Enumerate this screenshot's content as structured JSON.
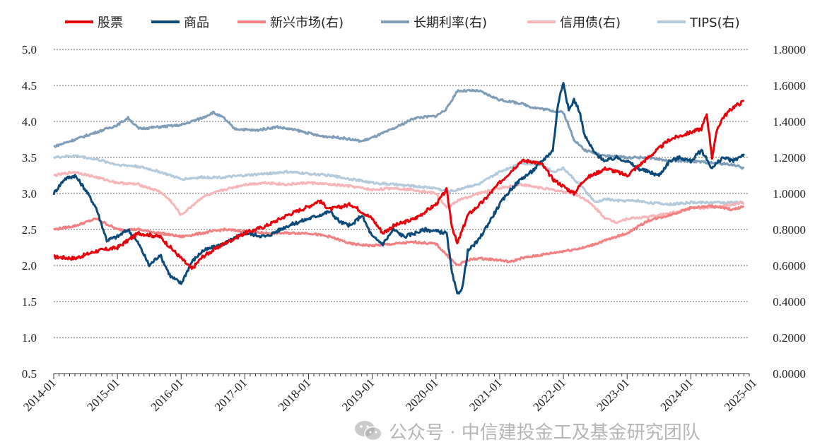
{
  "chart_data": {
    "type": "line",
    "x_labels": [
      "2014-01",
      "2015-01",
      "2016-01",
      "2017-01",
      "2018-01",
      "2019-01",
      "2020-01",
      "2021-01",
      "2022-01",
      "2023-01",
      "2024-01",
      "2025-01"
    ],
    "y_left": {
      "ticks": [
        "5.0",
        "4.5",
        "4.0",
        "3.5",
        "3.0",
        "2.5",
        "2.0",
        "1.5",
        "1.0",
        "0.5"
      ],
      "ylim": [
        0.5,
        5.0
      ]
    },
    "y_right": {
      "ticks": [
        "1.8000",
        "1.6000",
        "1.4000",
        "1.2000",
        "1.0000",
        "0.8000",
        "0.6000",
        "0.4000",
        "0.2000",
        "0.0000"
      ],
      "ylim": [
        0.0,
        1.8
      ]
    },
    "grid": "horizontal-dashed",
    "legend_position": "top",
    "series": [
      {
        "name": "股票",
        "axis": "left",
        "color": "#e8000b",
        "points": [
          [
            0,
            2.12
          ],
          [
            4,
            2.1
          ],
          [
            8,
            2.2
          ],
          [
            12,
            2.25
          ],
          [
            16,
            2.45
          ],
          [
            20,
            2.4
          ],
          [
            22,
            2.25
          ],
          [
            24,
            2.1
          ],
          [
            26,
            1.95
          ],
          [
            28,
            2.12
          ],
          [
            32,
            2.3
          ],
          [
            36,
            2.45
          ],
          [
            40,
            2.55
          ],
          [
            44,
            2.7
          ],
          [
            48,
            2.82
          ],
          [
            50,
            2.9
          ],
          [
            52,
            2.78
          ],
          [
            56,
            2.85
          ],
          [
            60,
            2.65
          ],
          [
            62,
            2.45
          ],
          [
            64,
            2.55
          ],
          [
            68,
            2.65
          ],
          [
            72,
            2.85
          ],
          [
            74,
            3.05
          ],
          [
            75,
            2.55
          ],
          [
            76,
            2.3
          ],
          [
            78,
            2.7
          ],
          [
            81,
            2.9
          ],
          [
            84,
            3.15
          ],
          [
            86,
            3.3
          ],
          [
            88,
            3.45
          ],
          [
            90,
            3.45
          ],
          [
            92,
            3.4
          ],
          [
            94,
            3.2
          ],
          [
            96,
            3.1
          ],
          [
            98,
            3.0
          ],
          [
            100,
            3.2
          ],
          [
            104,
            3.35
          ],
          [
            108,
            3.25
          ],
          [
            112,
            3.5
          ],
          [
            116,
            3.75
          ],
          [
            120,
            3.85
          ],
          [
            122,
            3.9
          ],
          [
            123,
            4.1
          ],
          [
            124,
            3.5
          ],
          [
            125,
            3.9
          ],
          [
            126,
            4.05
          ],
          [
            128,
            4.2
          ],
          [
            130,
            4.28
          ]
        ]
      },
      {
        "name": "商品",
        "axis": "left",
        "color": "#0c4a7a",
        "points": [
          [
            0,
            3.0
          ],
          [
            2,
            3.2
          ],
          [
            4,
            3.25
          ],
          [
            6,
            3.05
          ],
          [
            8,
            2.8
          ],
          [
            10,
            2.35
          ],
          [
            12,
            2.4
          ],
          [
            14,
            2.5
          ],
          [
            16,
            2.3
          ],
          [
            18,
            2.0
          ],
          [
            20,
            2.15
          ],
          [
            22,
            1.85
          ],
          [
            24,
            1.75
          ],
          [
            26,
            2.05
          ],
          [
            28,
            2.2
          ],
          [
            32,
            2.3
          ],
          [
            36,
            2.45
          ],
          [
            40,
            2.4
          ],
          [
            44,
            2.55
          ],
          [
            48,
            2.65
          ],
          [
            52,
            2.75
          ],
          [
            54,
            2.6
          ],
          [
            56,
            2.55
          ],
          [
            58,
            2.7
          ],
          [
            60,
            2.4
          ],
          [
            62,
            2.3
          ],
          [
            64,
            2.5
          ],
          [
            66,
            2.4
          ],
          [
            70,
            2.5
          ],
          [
            74,
            2.45
          ],
          [
            75,
            1.9
          ],
          [
            76,
            1.6
          ],
          [
            77,
            1.7
          ],
          [
            78,
            2.2
          ],
          [
            80,
            2.35
          ],
          [
            82,
            2.6
          ],
          [
            84,
            2.85
          ],
          [
            86,
            3.05
          ],
          [
            88,
            3.2
          ],
          [
            90,
            3.3
          ],
          [
            92,
            3.45
          ],
          [
            94,
            3.6
          ],
          [
            95,
            4.25
          ],
          [
            96,
            4.55
          ],
          [
            97,
            4.15
          ],
          [
            98,
            4.3
          ],
          [
            99,
            4.15
          ],
          [
            100,
            3.8
          ],
          [
            102,
            3.55
          ],
          [
            104,
            3.45
          ],
          [
            106,
            3.5
          ],
          [
            108,
            3.45
          ],
          [
            110,
            3.35
          ],
          [
            112,
            3.3
          ],
          [
            114,
            3.25
          ],
          [
            116,
            3.45
          ],
          [
            118,
            3.5
          ],
          [
            120,
            3.45
          ],
          [
            122,
            3.6
          ],
          [
            124,
            3.35
          ],
          [
            126,
            3.5
          ],
          [
            128,
            3.45
          ],
          [
            130,
            3.55
          ]
        ]
      },
      {
        "name": "新兴市场(右)",
        "axis": "right",
        "color": "#f28080",
        "points": [
          [
            0,
            0.8
          ],
          [
            4,
            0.82
          ],
          [
            8,
            0.86
          ],
          [
            12,
            0.8
          ],
          [
            16,
            0.8
          ],
          [
            20,
            0.78
          ],
          [
            24,
            0.76
          ],
          [
            28,
            0.78
          ],
          [
            32,
            0.8
          ],
          [
            36,
            0.79
          ],
          [
            40,
            0.78
          ],
          [
            44,
            0.78
          ],
          [
            48,
            0.78
          ],
          [
            52,
            0.76
          ],
          [
            56,
            0.72
          ],
          [
            60,
            0.71
          ],
          [
            64,
            0.72
          ],
          [
            68,
            0.73
          ],
          [
            72,
            0.72
          ],
          [
            74,
            0.66
          ],
          [
            76,
            0.6
          ],
          [
            78,
            0.63
          ],
          [
            80,
            0.64
          ],
          [
            84,
            0.63
          ],
          [
            86,
            0.62
          ],
          [
            88,
            0.64
          ],
          [
            92,
            0.66
          ],
          [
            96,
            0.68
          ],
          [
            100,
            0.7
          ],
          [
            104,
            0.74
          ],
          [
            108,
            0.78
          ],
          [
            112,
            0.85
          ],
          [
            116,
            0.88
          ],
          [
            120,
            0.92
          ],
          [
            124,
            0.93
          ],
          [
            128,
            0.91
          ],
          [
            130,
            0.93
          ]
        ]
      },
      {
        "name": "长期利率(右)",
        "axis": "right",
        "color": "#7f9db9",
        "points": [
          [
            0,
            1.26
          ],
          [
            4,
            1.3
          ],
          [
            8,
            1.34
          ],
          [
            12,
            1.38
          ],
          [
            14,
            1.42
          ],
          [
            16,
            1.36
          ],
          [
            20,
            1.37
          ],
          [
            24,
            1.38
          ],
          [
            28,
            1.42
          ],
          [
            30,
            1.45
          ],
          [
            32,
            1.42
          ],
          [
            34,
            1.36
          ],
          [
            38,
            1.35
          ],
          [
            42,
            1.37
          ],
          [
            46,
            1.35
          ],
          [
            50,
            1.32
          ],
          [
            54,
            1.31
          ],
          [
            58,
            1.29
          ],
          [
            60,
            1.31
          ],
          [
            64,
            1.36
          ],
          [
            68,
            1.42
          ],
          [
            72,
            1.43
          ],
          [
            74,
            1.47
          ],
          [
            76,
            1.57
          ],
          [
            80,
            1.57
          ],
          [
            84,
            1.52
          ],
          [
            88,
            1.5
          ],
          [
            90,
            1.48
          ],
          [
            92,
            1.47
          ],
          [
            94,
            1.46
          ],
          [
            96,
            1.45
          ],
          [
            98,
            1.3
          ],
          [
            100,
            1.24
          ],
          [
            104,
            1.21
          ],
          [
            108,
            1.2
          ],
          [
            112,
            1.2
          ],
          [
            116,
            1.18
          ],
          [
            120,
            1.18
          ],
          [
            124,
            1.17
          ],
          [
            128,
            1.16
          ],
          [
            130,
            1.14
          ]
        ]
      },
      {
        "name": "信用债(右)",
        "axis": "right",
        "color": "#f7b5b8",
        "points": [
          [
            0,
            1.1
          ],
          [
            4,
            1.12
          ],
          [
            8,
            1.09
          ],
          [
            12,
            1.06
          ],
          [
            16,
            1.05
          ],
          [
            20,
            1.01
          ],
          [
            22,
            0.96
          ],
          [
            24,
            0.88
          ],
          [
            26,
            0.93
          ],
          [
            28,
            0.98
          ],
          [
            32,
            1.02
          ],
          [
            36,
            1.05
          ],
          [
            40,
            1.06
          ],
          [
            44,
            1.05
          ],
          [
            48,
            1.06
          ],
          [
            52,
            1.05
          ],
          [
            56,
            1.04
          ],
          [
            60,
            1.02
          ],
          [
            64,
            1.03
          ],
          [
            68,
            1.02
          ],
          [
            72,
            1.0
          ],
          [
            74,
            0.92
          ],
          [
            76,
            0.96
          ],
          [
            78,
            0.98
          ],
          [
            80,
            1.0
          ],
          [
            84,
            1.03
          ],
          [
            88,
            1.05
          ],
          [
            92,
            1.03
          ],
          [
            96,
            1.01
          ],
          [
            98,
            1.0
          ],
          [
            100,
            0.97
          ],
          [
            102,
            0.92
          ],
          [
            104,
            0.86
          ],
          [
            106,
            0.84
          ],
          [
            108,
            0.86
          ],
          [
            112,
            0.87
          ],
          [
            116,
            0.89
          ],
          [
            120,
            0.92
          ],
          [
            124,
            0.92
          ],
          [
            128,
            0.94
          ],
          [
            130,
            0.95
          ]
        ]
      },
      {
        "name": "TIPS(右)",
        "axis": "right",
        "color": "#b3c9dc",
        "points": [
          [
            0,
            1.2
          ],
          [
            4,
            1.21
          ],
          [
            8,
            1.19
          ],
          [
            12,
            1.16
          ],
          [
            16,
            1.15
          ],
          [
            20,
            1.12
          ],
          [
            24,
            1.08
          ],
          [
            28,
            1.09
          ],
          [
            32,
            1.09
          ],
          [
            36,
            1.1
          ],
          [
            40,
            1.11
          ],
          [
            44,
            1.12
          ],
          [
            48,
            1.11
          ],
          [
            52,
            1.1
          ],
          [
            56,
            1.08
          ],
          [
            60,
            1.06
          ],
          [
            64,
            1.05
          ],
          [
            68,
            1.04
          ],
          [
            72,
            1.03
          ],
          [
            74,
            1.01
          ],
          [
            76,
            1.02
          ],
          [
            78,
            1.04
          ],
          [
            80,
            1.05
          ],
          [
            84,
            1.12
          ],
          [
            88,
            1.17
          ],
          [
            92,
            1.16
          ],
          [
            94,
            1.12
          ],
          [
            96,
            1.14
          ],
          [
            98,
            1.08
          ],
          [
            100,
            1.02
          ],
          [
            102,
            0.95
          ],
          [
            104,
            0.97
          ],
          [
            106,
            0.96
          ],
          [
            110,
            0.96
          ],
          [
            112,
            0.95
          ],
          [
            116,
            0.94
          ],
          [
            120,
            0.95
          ],
          [
            124,
            0.95
          ],
          [
            128,
            0.95
          ],
          [
            130,
            0.95
          ]
        ]
      }
    ]
  },
  "watermark": {
    "icon": "wechat-icon",
    "text": "公众号 · 中信建投金工及基金研究团队"
  }
}
